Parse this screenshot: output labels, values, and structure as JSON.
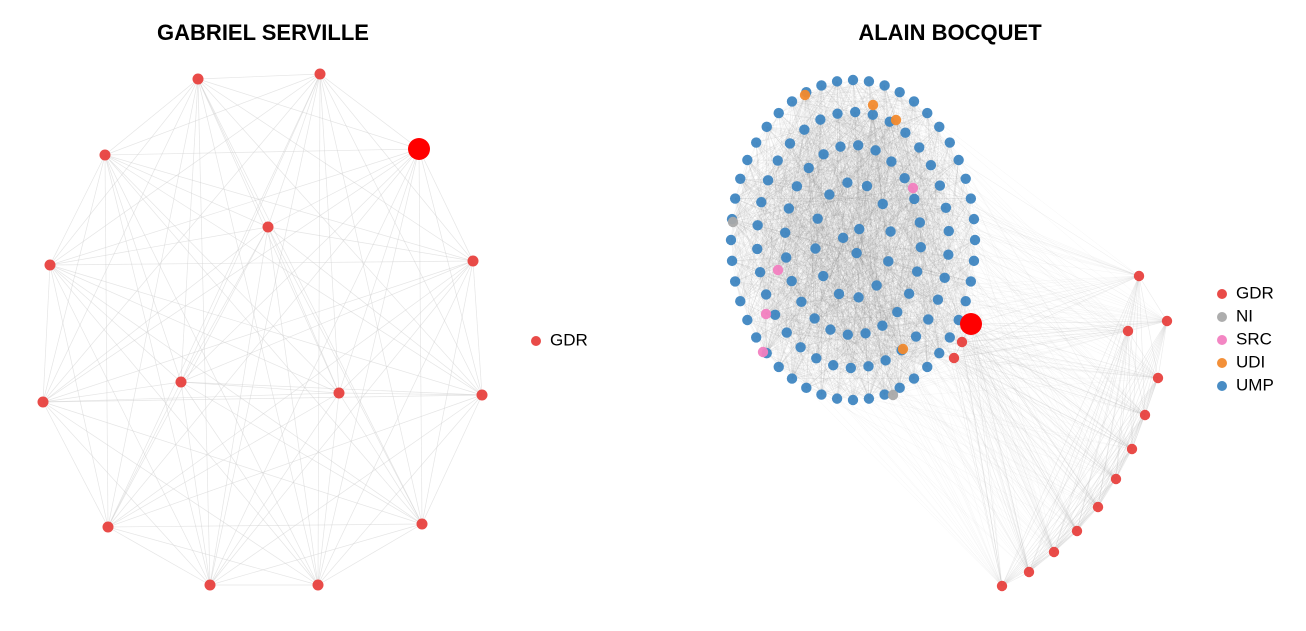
{
  "panels": [
    {
      "title": "GABRIEL SERVILLE",
      "legend": [
        {
          "label": "GDR",
          "color": "#e8413e"
        }
      ]
    },
    {
      "title": "ALAIN BOCQUET",
      "legend": [
        {
          "label": "GDR",
          "color": "#e8413e"
        },
        {
          "label": "NI",
          "color": "#a9a9a9"
        },
        {
          "label": "SRC",
          "color": "#f27fc0"
        },
        {
          "label": "UDI",
          "color": "#f28a2e"
        },
        {
          "label": "UMP",
          "color": "#3f86c1"
        }
      ]
    }
  ]
}
